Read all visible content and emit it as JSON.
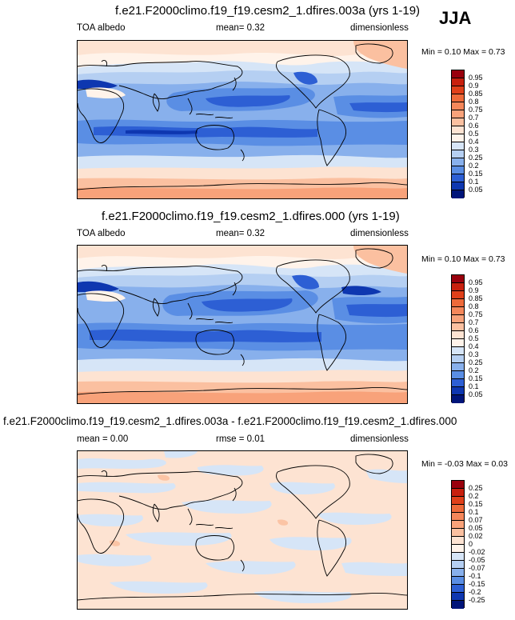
{
  "season": "JJA",
  "panels": [
    {
      "title": "f.e21.F2000climo.f19_f19.cesm2_1.dfires.003a (yrs 1-19)",
      "variable": "TOA albedo",
      "stat1": "mean=  0.32",
      "units": "dimensionless",
      "minmax": "Min =  0.10 Max =  0.73",
      "colorbar": {
        "labels": [
          "0.95",
          "0.9",
          "0.85",
          "0.8",
          "0.75",
          "0.7",
          "0.6",
          "0.5",
          "0.4",
          "0.3",
          "0.25",
          "0.2",
          "0.15",
          "0.1",
          "0.05"
        ],
        "colors": [
          "#99000d",
          "#c8200e",
          "#e0401a",
          "#ee6a3a",
          "#f5875a",
          "#f8a27a",
          "#fbc0a0",
          "#fde3d2",
          "#fff3ea",
          "#d6e5f7",
          "#b5cff2",
          "#88b0ec",
          "#5a8ee4",
          "#2d5fd4",
          "#0e37b0",
          "#00157a"
        ]
      }
    },
    {
      "title": "f.e21.F2000climo.f19_f19.cesm2_1.dfires.000 (yrs 1-19)",
      "variable": "TOA albedo",
      "stat1": "mean=  0.32",
      "units": "dimensionless",
      "minmax": "Min =  0.10 Max =  0.73",
      "colorbar": {
        "labels": [
          "0.95",
          "0.9",
          "0.85",
          "0.8",
          "0.75",
          "0.7",
          "0.6",
          "0.5",
          "0.4",
          "0.3",
          "0.25",
          "0.2",
          "0.15",
          "0.1",
          "0.05"
        ],
        "colors": [
          "#99000d",
          "#c8200e",
          "#e0401a",
          "#ee6a3a",
          "#f5875a",
          "#f8a27a",
          "#fbc0a0",
          "#fde3d2",
          "#fff3ea",
          "#d6e5f7",
          "#b5cff2",
          "#88b0ec",
          "#5a8ee4",
          "#2d5fd4",
          "#0e37b0",
          "#00157a"
        ]
      }
    },
    {
      "title": "f.e21.F2000climo.f19_f19.cesm2_1.dfires.003a - f.e21.F2000climo.f19_f19.cesm2_1.dfires.000",
      "variable": "mean =  0.00",
      "stat1": "rmse =  0.01",
      "units": "dimensionless",
      "minmax": "Min = -0.03 Max =  0.03",
      "colorbar": {
        "labels": [
          "0.25",
          "0.2",
          "0.15",
          "0.1",
          "0.07",
          "0.05",
          "0.02",
          "0",
          "-0.02",
          "-0.05",
          "-0.07",
          "-0.1",
          "-0.15",
          "-0.2",
          "-0.25"
        ],
        "colors": [
          "#99000d",
          "#c8200e",
          "#e0401a",
          "#ee6a3a",
          "#f5875a",
          "#f8a27a",
          "#fbc0a0",
          "#fde3d2",
          "#fff3ea",
          "#d6e5f7",
          "#b5cff2",
          "#88b0ec",
          "#5a8ee4",
          "#2d5fd4",
          "#0e37b0",
          "#00157a"
        ]
      }
    }
  ]
}
